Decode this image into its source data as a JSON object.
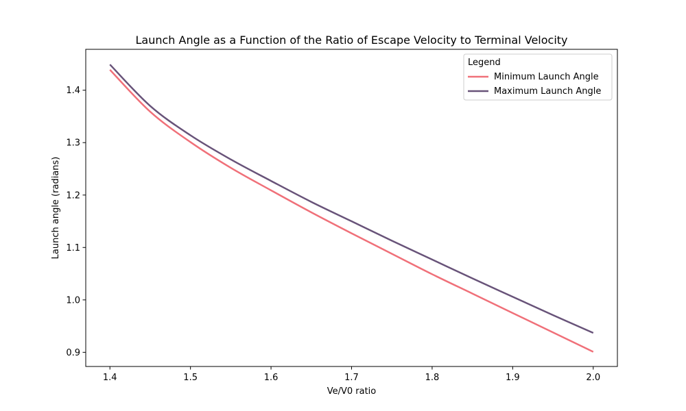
{
  "chart_data": {
    "type": "line",
    "title": "Launch Angle as a Function of the Ratio of Escape Velocity to Terminal Velocity",
    "xlabel": "Ve/V0 ratio",
    "ylabel": "Launch angle (radians)",
    "xlim": [
      1.37,
      2.03
    ],
    "ylim": [
      0.873,
      1.478
    ],
    "xticks": [
      1.4,
      1.5,
      1.6,
      1.7,
      1.8,
      1.9,
      2.0
    ],
    "xtick_labels": [
      "1.4",
      "1.5",
      "1.6",
      "1.7",
      "1.8",
      "1.9",
      "2.0"
    ],
    "yticks": [
      0.9,
      1.0,
      1.1,
      1.2,
      1.3,
      1.4
    ],
    "ytick_labels": [
      "0.9",
      "1.0",
      "1.1",
      "1.2",
      "1.3",
      "1.4"
    ],
    "grid": false,
    "legend": {
      "title": "Legend",
      "placement": "top-right"
    },
    "x": [
      1.4,
      1.45,
      1.5,
      1.55,
      1.6,
      1.65,
      1.7,
      1.75,
      1.8,
      1.85,
      1.9,
      1.95,
      2.0
    ],
    "series": [
      {
        "name": "Minimum Launch Angle",
        "color": "#f07079",
        "values": [
          1.439,
          1.359,
          1.301,
          1.252,
          1.209,
          1.167,
          1.127,
          1.088,
          1.049,
          1.012,
          0.975,
          0.938,
          0.901
        ]
      },
      {
        "name": "Maximum Launch Angle",
        "color": "#685379",
        "values": [
          1.449,
          1.37,
          1.314,
          1.268,
          1.227,
          1.187,
          1.15,
          1.113,
          1.077,
          1.041,
          1.006,
          0.971,
          0.937
        ]
      }
    ]
  }
}
